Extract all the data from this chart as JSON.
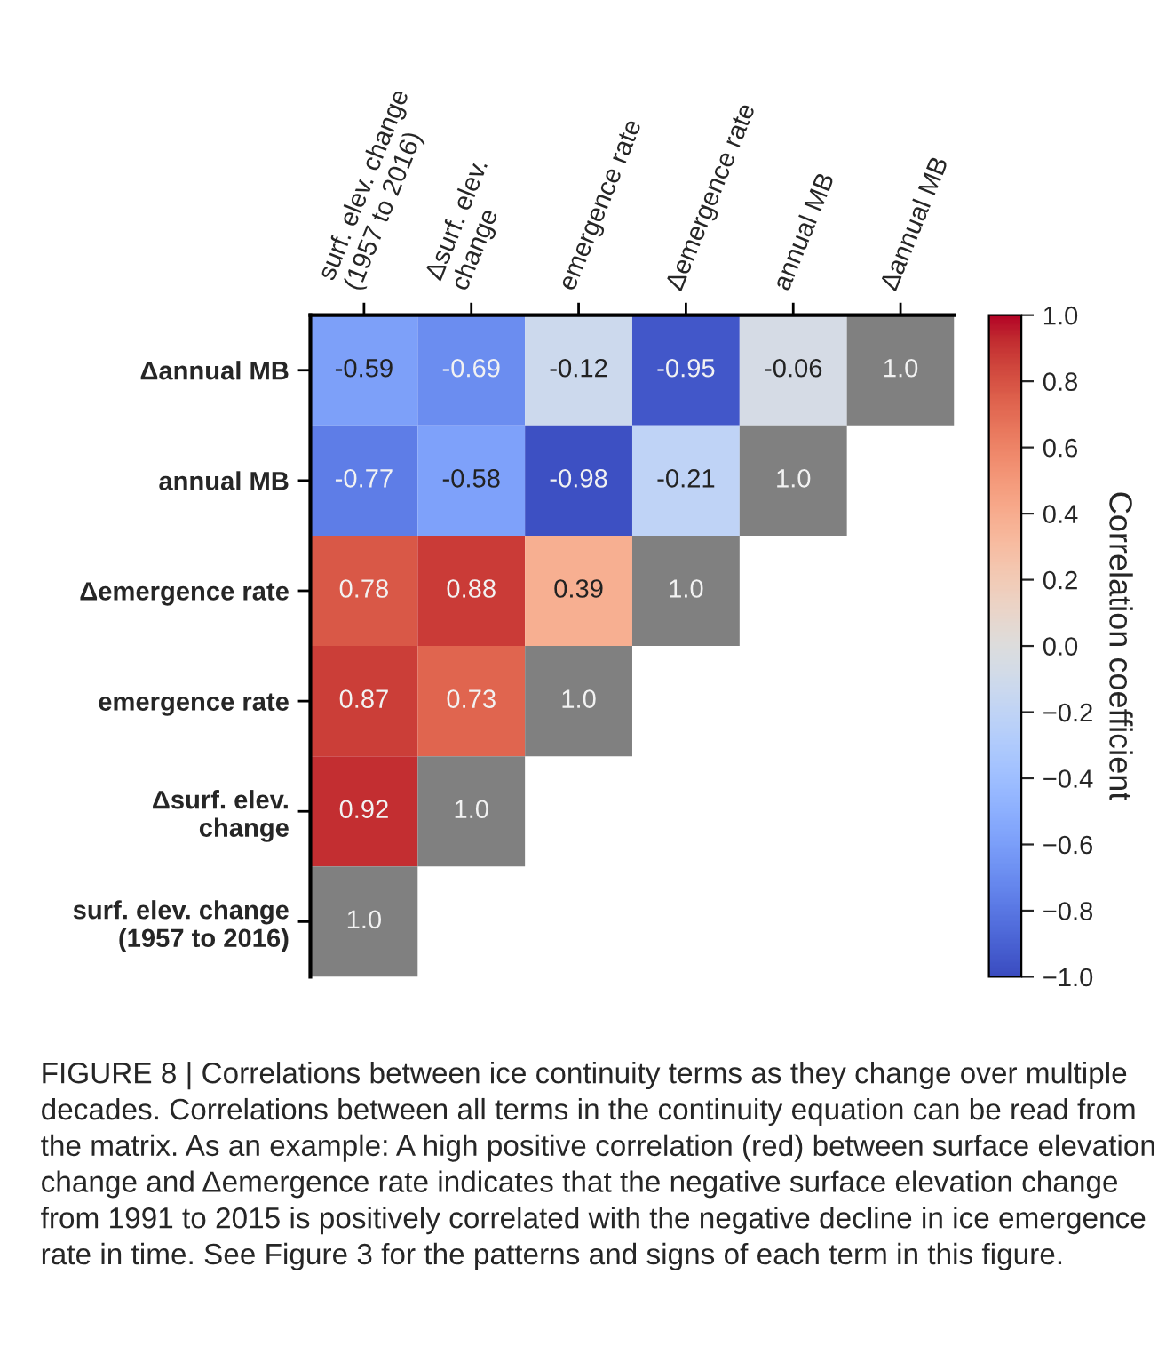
{
  "chart_data": {
    "type": "heatmap",
    "categories": [
      "surf. elev. change\n(1957 to 2016)",
      "Δsurf. elev.\nchange",
      "emergence rate",
      "Δemergence rate",
      "annual MB",
      "Δannual MB"
    ],
    "y_categories": [
      "Δannual MB",
      "annual MB",
      "Δemergence rate",
      "emergence rate",
      "Δsurf. elev.\nchange",
      "surf. elev. change\n(1957 to 2016)"
    ],
    "cells": [
      [
        -0.59,
        -0.69,
        -0.12,
        -0.95,
        -0.06,
        null
      ],
      [
        -0.77,
        -0.58,
        -0.98,
        -0.21,
        null,
        null
      ],
      [
        0.78,
        0.88,
        0.39,
        null,
        null,
        null
      ],
      [
        0.87,
        0.73,
        null,
        null,
        null,
        null
      ],
      [
        0.92,
        null,
        null,
        null,
        null,
        null
      ],
      [
        null,
        null,
        null,
        null,
        null,
        null
      ]
    ],
    "cell_labels": [
      [
        "-0.59",
        "-0.69",
        "-0.12",
        "-0.95",
        "-0.06",
        "1.0"
      ],
      [
        "-0.77",
        "-0.58",
        "-0.98",
        "-0.21",
        "1.0",
        null
      ],
      [
        "0.78",
        "0.88",
        "0.39",
        "1.0",
        null,
        null
      ],
      [
        "0.87",
        "0.73",
        "1.0",
        null,
        null,
        null
      ],
      [
        "0.92",
        "1.0",
        null,
        null,
        null,
        null
      ],
      [
        "1.0",
        null,
        null,
        null,
        null,
        null
      ]
    ],
    "clim": [
      -1,
      1
    ],
    "cticks": [
      {
        "value": -1,
        "label": "−1.0"
      },
      {
        "value": -0.8,
        "label": "−0.8"
      },
      {
        "value": -0.6,
        "label": "−0.6"
      },
      {
        "value": -0.4,
        "label": "−0.4"
      },
      {
        "value": -0.2,
        "label": "−0.2"
      },
      {
        "value": 0,
        "label": "0.0"
      },
      {
        "value": 0.2,
        "label": "0.2"
      },
      {
        "value": 0.4,
        "label": "0.4"
      },
      {
        "value": 0.6,
        "label": "0.6"
      },
      {
        "value": 0.8,
        "label": "0.8"
      },
      {
        "value": 1,
        "label": "1.0"
      }
    ],
    "clabel": "Correlation coefficient",
    "annotations": [
      "FIGURE 8 | Correlations between ice continuity terms as they change over multiple decades. Correlations between all terms in the continuity equation can be read from the matrix. As an example: A high positive correlation (red) between surface elevation change and Δemergence rate indicates that the negative surface elevation change from 1991 to 2015 is positively correlated with the negative decline in ice emergence rate in time. See Figure 3 for the patterns and signs of each term in this figure."
    ]
  }
}
